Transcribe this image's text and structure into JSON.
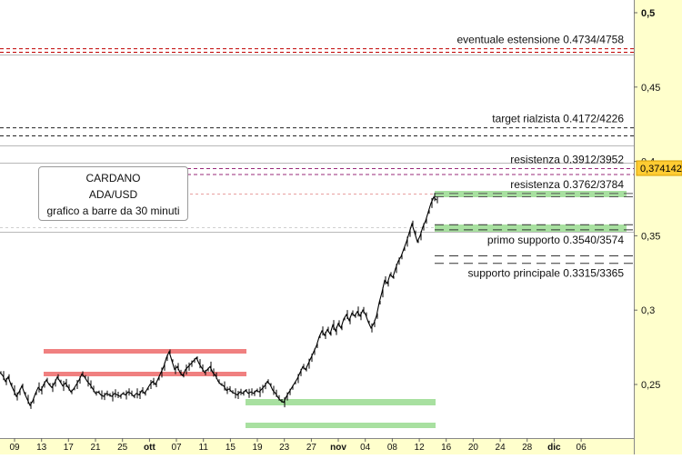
{
  "chart_data": {
    "type": "line",
    "info_box": [
      "CARDANO",
      "ADA/USD",
      "grafico a barre da 30 minuti"
    ],
    "x_ticks": [
      "09",
      "13",
      "17",
      "21",
      "25",
      "ott",
      "07",
      "11",
      "15",
      "19",
      "23",
      "27",
      "nov",
      "04",
      "08",
      "12",
      "16",
      "20",
      "24",
      "28",
      "dic",
      "06"
    ],
    "y_ticks": [
      "0,5",
      "0,45",
      "0,4",
      "0,35",
      "0,3",
      "0,25"
    ],
    "ylim": [
      0.226,
      0.505
    ],
    "last_price": {
      "label": "0,374142",
      "value": 0.374142
    },
    "price_series": [
      [
        0,
        0.258
      ],
      [
        3,
        0.256
      ],
      [
        6,
        0.252
      ],
      [
        9,
        0.255
      ],
      [
        12,
        0.25
      ],
      [
        15,
        0.246
      ],
      [
        18,
        0.242
      ],
      [
        21,
        0.245
      ],
      [
        24,
        0.249
      ],
      [
        27,
        0.244
      ],
      [
        30,
        0.24
      ],
      [
        33,
        0.236
      ],
      [
        36,
        0.239
      ],
      [
        39,
        0.244
      ],
      [
        42,
        0.248
      ],
      [
        45,
        0.246
      ],
      [
        48,
        0.25
      ],
      [
        51,
        0.253
      ],
      [
        54,
        0.25
      ],
      [
        57,
        0.248
      ],
      [
        60,
        0.251
      ],
      [
        63,
        0.255
      ],
      [
        66,
        0.252
      ],
      [
        69,
        0.249
      ],
      [
        72,
        0.251
      ],
      [
        75,
        0.248
      ],
      [
        78,
        0.245
      ],
      [
        81,
        0.247
      ],
      [
        84,
        0.25
      ],
      [
        87,
        0.253
      ],
      [
        90,
        0.257
      ],
      [
        93,
        0.255
      ],
      [
        96,
        0.252
      ],
      [
        99,
        0.25
      ],
      [
        102,
        0.247
      ],
      [
        105,
        0.244
      ],
      [
        108,
        0.245
      ],
      [
        111,
        0.243
      ],
      [
        114,
        0.242
      ],
      [
        117,
        0.244
      ],
      [
        120,
        0.243
      ],
      [
        123,
        0.242
      ],
      [
        126,
        0.244
      ],
      [
        129,
        0.243
      ],
      [
        132,
        0.242
      ],
      [
        135,
        0.244
      ],
      [
        138,
        0.243
      ],
      [
        141,
        0.245
      ],
      [
        144,
        0.244
      ],
      [
        147,
        0.242
      ],
      [
        150,
        0.244
      ],
      [
        153,
        0.243
      ],
      [
        156,
        0.246
      ],
      [
        159,
        0.244
      ],
      [
        162,
        0.247
      ],
      [
        165,
        0.25
      ],
      [
        168,
        0.252
      ],
      [
        171,
        0.25
      ],
      [
        174,
        0.254
      ],
      [
        177,
        0.258
      ],
      [
        180,
        0.262
      ],
      [
        183,
        0.268
      ],
      [
        186,
        0.272
      ],
      [
        189,
        0.266
      ],
      [
        192,
        0.26
      ],
      [
        195,
        0.262
      ],
      [
        198,
        0.258
      ],
      [
        201,
        0.256
      ],
      [
        204,
        0.26
      ],
      [
        207,
        0.262
      ],
      [
        210,
        0.264
      ],
      [
        213,
        0.266
      ],
      [
        216,
        0.268
      ],
      [
        219,
        0.264
      ],
      [
        222,
        0.261
      ],
      [
        225,
        0.258
      ],
      [
        228,
        0.26
      ],
      [
        231,
        0.262
      ],
      [
        234,
        0.258
      ],
      [
        237,
        0.256
      ],
      [
        240,
        0.252
      ],
      [
        243,
        0.25
      ],
      [
        246,
        0.249
      ],
      [
        249,
        0.246
      ],
      [
        252,
        0.247
      ],
      [
        255,
        0.245
      ],
      [
        258,
        0.244
      ],
      [
        261,
        0.243
      ],
      [
        264,
        0.245
      ],
      [
        267,
        0.244
      ],
      [
        270,
        0.246
      ],
      [
        273,
        0.244
      ],
      [
        276,
        0.245
      ],
      [
        279,
        0.244
      ],
      [
        282,
        0.246
      ],
      [
        285,
        0.245
      ],
      [
        288,
        0.247
      ],
      [
        291,
        0.249
      ],
      [
        294,
        0.252
      ],
      [
        297,
        0.25
      ],
      [
        300,
        0.246
      ],
      [
        303,
        0.244
      ],
      [
        306,
        0.241
      ],
      [
        309,
        0.239
      ],
      [
        312,
        0.238
      ],
      [
        315,
        0.242
      ],
      [
        318,
        0.245
      ],
      [
        321,
        0.248
      ],
      [
        324,
        0.251
      ],
      [
        327,
        0.254
      ],
      [
        330,
        0.258
      ],
      [
        333,
        0.262
      ],
      [
        336,
        0.26
      ],
      [
        339,
        0.264
      ],
      [
        342,
        0.268
      ],
      [
        345,
        0.272
      ],
      [
        348,
        0.276
      ],
      [
        351,
        0.282
      ],
      [
        354,
        0.286
      ],
      [
        357,
        0.283
      ],
      [
        360,
        0.287
      ],
      [
        363,
        0.284
      ],
      [
        366,
        0.29
      ],
      [
        369,
        0.286
      ],
      [
        372,
        0.291
      ],
      [
        375,
        0.288
      ],
      [
        378,
        0.294
      ],
      [
        381,
        0.297
      ],
      [
        384,
        0.293
      ],
      [
        387,
        0.298
      ],
      [
        390,
        0.296
      ],
      [
        393,
        0.299
      ],
      [
        396,
        0.296
      ],
      [
        399,
        0.3
      ],
      [
        402,
        0.297
      ],
      [
        405,
        0.292
      ],
      [
        408,
        0.288
      ],
      [
        411,
        0.291
      ],
      [
        414,
        0.296
      ],
      [
        417,
        0.305
      ],
      [
        420,
        0.312
      ],
      [
        423,
        0.32
      ],
      [
        426,
        0.318
      ],
      [
        429,
        0.324
      ],
      [
        432,
        0.322
      ],
      [
        435,
        0.328
      ],
      [
        438,
        0.333
      ],
      [
        441,
        0.336
      ],
      [
        444,
        0.341
      ],
      [
        447,
        0.346
      ],
      [
        450,
        0.352
      ],
      [
        453,
        0.358
      ],
      [
        456,
        0.352
      ],
      [
        459,
        0.346
      ],
      [
        462,
        0.35
      ],
      [
        465,
        0.356
      ],
      [
        468,
        0.36
      ],
      [
        471,
        0.366
      ],
      [
        474,
        0.372
      ],
      [
        477,
        0.376
      ],
      [
        480,
        0.374
      ]
    ],
    "levels": [
      {
        "label": "eventuale estensione 0.4734/4758",
        "value": 0.4734,
        "value2": 0.4758,
        "color": "#c00000",
        "x_from": 0,
        "x_to": 697
      },
      {
        "label": "target rialzista 0.4172/4226",
        "value": 0.4172,
        "value2": 0.4226,
        "color": "#222222",
        "x_from": 0,
        "x_to": 697
      },
      {
        "label": "resistenza 0.3912/3952",
        "value": 0.3912,
        "value2": 0.3952,
        "color": "#9a2a7a",
        "x_from": 185,
        "x_to": 697
      },
      {
        "label": "resistenza 0.3762/3784",
        "value": 0.3762,
        "value2": 0.3784,
        "color": "#555555",
        "x_from": 478,
        "x_to": 697
      },
      {
        "label": "primo supporto 0.3540/3574",
        "value": 0.354,
        "value2": 0.3574,
        "color": "#4e9f3d",
        "x_from": 478,
        "x_to": 697
      },
      {
        "label": "supporto principale 0.3315/3365",
        "value": 0.3315,
        "value2": 0.3365,
        "color": "#4e9f3d",
        "x_from": 478,
        "x_to": 697
      }
    ]
  }
}
